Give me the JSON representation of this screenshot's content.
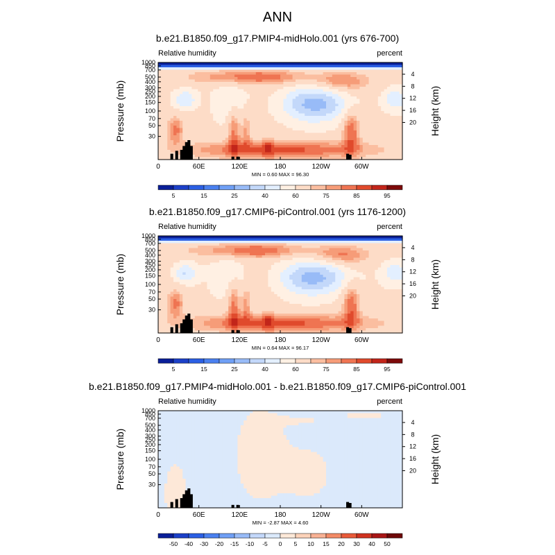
{
  "page": {
    "title": "ANN"
  },
  "panels": [
    {
      "title": "b.e21.B1850.f09_g17.PMIP4-midHolo.001 (yrs 676-700)",
      "left_label": "Relative humidity",
      "right_label": "percent",
      "ylabel": "Pressure (mb)",
      "ylabel_right": "Height (km)",
      "minmax": "MIN =   0.60  MAX =   96.30",
      "colorbar_labels": [
        "5",
        "15",
        "25",
        "40",
        "60",
        "75",
        "85",
        "95"
      ],
      "kind": "abs"
    },
    {
      "title": "b.e21.B1850.f09_g17.CMIP6-piControl.001 (yrs 1176-1200)",
      "left_label": "Relative humidity",
      "right_label": "percent",
      "ylabel": "Pressure (mb)",
      "ylabel_right": "Height (km)",
      "minmax": "MIN =   0.64  MAX =   96.17",
      "colorbar_labels": [
        "5",
        "15",
        "25",
        "40",
        "60",
        "75",
        "85",
        "95"
      ],
      "kind": "abs"
    },
    {
      "title": "b.e21.B1850.f09_g17.PMIP4-midHolo.001 - b.e21.B1850.f09_g17.CMIP6-piControl.001",
      "left_label": "Relative humidity",
      "right_label": "percent",
      "ylabel": "Pressure (mb)",
      "ylabel_right": "Height (km)",
      "minmax": "MIN =  -2.87  MAX =   4.60",
      "colorbar_labels": [
        "-50",
        "-40",
        "-30",
        "-20",
        "-15",
        "-10",
        "-5",
        "0",
        "5",
        "10",
        "15",
        "20",
        "30",
        "40",
        "50"
      ],
      "kind": "diff"
    }
  ],
  "chart_data": {
    "type": "heatmap",
    "title": "ANN",
    "x_ticks": [
      "0",
      "60E",
      "120E",
      "180",
      "120W",
      "60W"
    ],
    "x_tick_values": [
      0,
      60,
      120,
      180,
      240,
      300
    ],
    "xlim": [
      0,
      360
    ],
    "y_ticks_pressure": [
      "1000",
      "850",
      "700",
      "500",
      "400",
      "300",
      "250",
      "200",
      "150",
      "100",
      "70",
      "50",
      "30"
    ],
    "y_tick_pressure_values": [
      1000,
      850,
      700,
      500,
      400,
      300,
      250,
      200,
      150,
      100,
      70,
      50,
      30
    ],
    "y_ticks_height": [
      "4",
      "8",
      "12",
      "16",
      "20"
    ],
    "y_tick_height_values": [
      4,
      8,
      12,
      16,
      20
    ],
    "ylim_pressure": [
      1000,
      10
    ],
    "y_scale": "log",
    "abs_levels": [
      5,
      10,
      15,
      20,
      25,
      30,
      40,
      50,
      60,
      70,
      75,
      80,
      85,
      90,
      95
    ],
    "abs_palette": [
      "#0a1f98",
      "#1c40c8",
      "#2b5fe3",
      "#4a80ef",
      "#6f9ff5",
      "#98bbf7",
      "#c3d8fa",
      "#e3efff",
      "#fff0e3",
      "#fddcc7",
      "#fbbea0",
      "#f69c78",
      "#ef7452",
      "#e04a2c",
      "#c2251a",
      "#7d0a0a"
    ],
    "diff_levels": [
      -50,
      -40,
      -30,
      -20,
      -15,
      -10,
      -5,
      0,
      5,
      10,
      15,
      20,
      30,
      40,
      50
    ],
    "diff_palette": [
      "#0a1f98",
      "#1c40c8",
      "#2b5fe3",
      "#4a80ef",
      "#6f9ff5",
      "#98bbf7",
      "#c3d8fa",
      "#dbe9fb",
      "#fde8d8",
      "#fcd2b9",
      "#f8b194",
      "#f28a66",
      "#e85a3a",
      "#cf3220",
      "#a81616",
      "#6e0808"
    ]
  }
}
